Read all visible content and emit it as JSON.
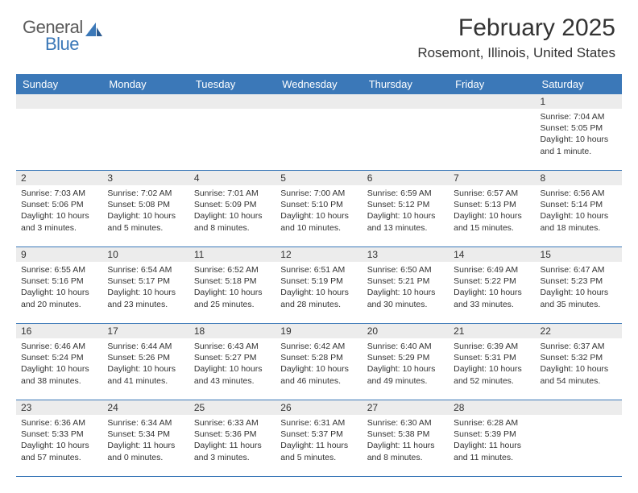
{
  "logo": {
    "text1": "General",
    "text2": "Blue"
  },
  "title": "February 2025",
  "location": "Rosemont, Illinois, United States",
  "colors": {
    "header_bg": "#3b78b8",
    "header_text": "#ffffff",
    "daynum_bg": "#ececec",
    "body_text": "#333333",
    "logo_gray": "#5a5a5a",
    "logo_blue": "#3b78b8"
  },
  "typography": {
    "title_fontsize": 30,
    "location_fontsize": 17,
    "day_header_fontsize": 13,
    "cell_fontsize": 10.5
  },
  "day_headers": [
    "Sunday",
    "Monday",
    "Tuesday",
    "Wednesday",
    "Thursday",
    "Friday",
    "Saturday"
  ],
  "weeks": [
    {
      "nums": [
        "",
        "",
        "",
        "",
        "",
        "",
        "1"
      ],
      "cells": [
        {},
        {},
        {},
        {},
        {},
        {},
        {
          "sunrise": "Sunrise: 7:04 AM",
          "sunset": "Sunset: 5:05 PM",
          "day1": "Daylight: 10 hours",
          "day2": "and 1 minute."
        }
      ]
    },
    {
      "nums": [
        "2",
        "3",
        "4",
        "5",
        "6",
        "7",
        "8"
      ],
      "cells": [
        {
          "sunrise": "Sunrise: 7:03 AM",
          "sunset": "Sunset: 5:06 PM",
          "day1": "Daylight: 10 hours",
          "day2": "and 3 minutes."
        },
        {
          "sunrise": "Sunrise: 7:02 AM",
          "sunset": "Sunset: 5:08 PM",
          "day1": "Daylight: 10 hours",
          "day2": "and 5 minutes."
        },
        {
          "sunrise": "Sunrise: 7:01 AM",
          "sunset": "Sunset: 5:09 PM",
          "day1": "Daylight: 10 hours",
          "day2": "and 8 minutes."
        },
        {
          "sunrise": "Sunrise: 7:00 AM",
          "sunset": "Sunset: 5:10 PM",
          "day1": "Daylight: 10 hours",
          "day2": "and 10 minutes."
        },
        {
          "sunrise": "Sunrise: 6:59 AM",
          "sunset": "Sunset: 5:12 PM",
          "day1": "Daylight: 10 hours",
          "day2": "and 13 minutes."
        },
        {
          "sunrise": "Sunrise: 6:57 AM",
          "sunset": "Sunset: 5:13 PM",
          "day1": "Daylight: 10 hours",
          "day2": "and 15 minutes."
        },
        {
          "sunrise": "Sunrise: 6:56 AM",
          "sunset": "Sunset: 5:14 PM",
          "day1": "Daylight: 10 hours",
          "day2": "and 18 minutes."
        }
      ]
    },
    {
      "nums": [
        "9",
        "10",
        "11",
        "12",
        "13",
        "14",
        "15"
      ],
      "cells": [
        {
          "sunrise": "Sunrise: 6:55 AM",
          "sunset": "Sunset: 5:16 PM",
          "day1": "Daylight: 10 hours",
          "day2": "and 20 minutes."
        },
        {
          "sunrise": "Sunrise: 6:54 AM",
          "sunset": "Sunset: 5:17 PM",
          "day1": "Daylight: 10 hours",
          "day2": "and 23 minutes."
        },
        {
          "sunrise": "Sunrise: 6:52 AM",
          "sunset": "Sunset: 5:18 PM",
          "day1": "Daylight: 10 hours",
          "day2": "and 25 minutes."
        },
        {
          "sunrise": "Sunrise: 6:51 AM",
          "sunset": "Sunset: 5:19 PM",
          "day1": "Daylight: 10 hours",
          "day2": "and 28 minutes."
        },
        {
          "sunrise": "Sunrise: 6:50 AM",
          "sunset": "Sunset: 5:21 PM",
          "day1": "Daylight: 10 hours",
          "day2": "and 30 minutes."
        },
        {
          "sunrise": "Sunrise: 6:49 AM",
          "sunset": "Sunset: 5:22 PM",
          "day1": "Daylight: 10 hours",
          "day2": "and 33 minutes."
        },
        {
          "sunrise": "Sunrise: 6:47 AM",
          "sunset": "Sunset: 5:23 PM",
          "day1": "Daylight: 10 hours",
          "day2": "and 35 minutes."
        }
      ]
    },
    {
      "nums": [
        "16",
        "17",
        "18",
        "19",
        "20",
        "21",
        "22"
      ],
      "cells": [
        {
          "sunrise": "Sunrise: 6:46 AM",
          "sunset": "Sunset: 5:24 PM",
          "day1": "Daylight: 10 hours",
          "day2": "and 38 minutes."
        },
        {
          "sunrise": "Sunrise: 6:44 AM",
          "sunset": "Sunset: 5:26 PM",
          "day1": "Daylight: 10 hours",
          "day2": "and 41 minutes."
        },
        {
          "sunrise": "Sunrise: 6:43 AM",
          "sunset": "Sunset: 5:27 PM",
          "day1": "Daylight: 10 hours",
          "day2": "and 43 minutes."
        },
        {
          "sunrise": "Sunrise: 6:42 AM",
          "sunset": "Sunset: 5:28 PM",
          "day1": "Daylight: 10 hours",
          "day2": "and 46 minutes."
        },
        {
          "sunrise": "Sunrise: 6:40 AM",
          "sunset": "Sunset: 5:29 PM",
          "day1": "Daylight: 10 hours",
          "day2": "and 49 minutes."
        },
        {
          "sunrise": "Sunrise: 6:39 AM",
          "sunset": "Sunset: 5:31 PM",
          "day1": "Daylight: 10 hours",
          "day2": "and 52 minutes."
        },
        {
          "sunrise": "Sunrise: 6:37 AM",
          "sunset": "Sunset: 5:32 PM",
          "day1": "Daylight: 10 hours",
          "day2": "and 54 minutes."
        }
      ]
    },
    {
      "nums": [
        "23",
        "24",
        "25",
        "26",
        "27",
        "28",
        ""
      ],
      "cells": [
        {
          "sunrise": "Sunrise: 6:36 AM",
          "sunset": "Sunset: 5:33 PM",
          "day1": "Daylight: 10 hours",
          "day2": "and 57 minutes."
        },
        {
          "sunrise": "Sunrise: 6:34 AM",
          "sunset": "Sunset: 5:34 PM",
          "day1": "Daylight: 11 hours",
          "day2": "and 0 minutes."
        },
        {
          "sunrise": "Sunrise: 6:33 AM",
          "sunset": "Sunset: 5:36 PM",
          "day1": "Daylight: 11 hours",
          "day2": "and 3 minutes."
        },
        {
          "sunrise": "Sunrise: 6:31 AM",
          "sunset": "Sunset: 5:37 PM",
          "day1": "Daylight: 11 hours",
          "day2": "and 5 minutes."
        },
        {
          "sunrise": "Sunrise: 6:30 AM",
          "sunset": "Sunset: 5:38 PM",
          "day1": "Daylight: 11 hours",
          "day2": "and 8 minutes."
        },
        {
          "sunrise": "Sunrise: 6:28 AM",
          "sunset": "Sunset: 5:39 PM",
          "day1": "Daylight: 11 hours",
          "day2": "and 11 minutes."
        },
        {}
      ]
    }
  ]
}
